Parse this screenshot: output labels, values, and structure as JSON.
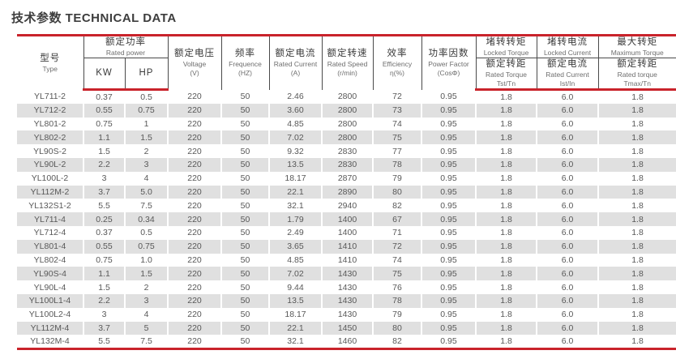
{
  "title": "技术参数 TECHNICAL DATA",
  "colors": {
    "accent_red": "#c9232b",
    "stripe_gray": "#e0e0e0",
    "header_line": "#4a4a4a",
    "title_text": "#3d3d3d",
    "body_text": "#585858"
  },
  "table": {
    "header": {
      "type": {
        "zh": "型号",
        "en": "Type"
      },
      "rated_power": {
        "zh": "额定功率",
        "en": "Rated power",
        "sub_kw": "KW",
        "sub_hp": "HP"
      },
      "voltage": {
        "zh": "额定电压",
        "en": "Voltage",
        "unit": "(V)"
      },
      "frequency": {
        "zh": "频率",
        "en": "Frequence",
        "unit": "(HZ)"
      },
      "rated_current": {
        "zh": "额定电流",
        "en": "Rated Current",
        "unit": "(A)"
      },
      "rated_speed": {
        "zh": "额定转速",
        "en": "Rated Speed",
        "unit": "(r/min)"
      },
      "efficiency": {
        "zh": "效率",
        "en": "Efficiency",
        "unit": "η(%)"
      },
      "power_factor": {
        "zh": "功率因数",
        "en": "Power Factor",
        "unit": "(CosΦ)"
      },
      "locked_torque": {
        "zh": "堵转转矩",
        "en": "Locked Torque",
        "sub_zh": "额定转距",
        "sub_en": "Rated Torque",
        "sub_unit": "Tst/Tn"
      },
      "locked_current": {
        "zh": "堵转电流",
        "en": "Locked Current",
        "sub_zh": "额定电流",
        "sub_en": "Rated Current",
        "sub_unit": "Ist/In"
      },
      "maximum_torque": {
        "zh": "最大转矩",
        "en": "Maximum Torque",
        "sub_zh": "额定转距",
        "sub_en": "Rated torque",
        "sub_unit": "Tmax/Tn"
      }
    },
    "rows": [
      [
        "YL711-2",
        "0.37",
        "0.5",
        "220",
        "50",
        "2.46",
        "2800",
        "72",
        "0.95",
        "1.8",
        "6.0",
        "1.8"
      ],
      [
        "YL712-2",
        "0.55",
        "0.75",
        "220",
        "50",
        "3.60",
        "2800",
        "73",
        "0.95",
        "1.8",
        "6.0",
        "1.8"
      ],
      [
        "YL801-2",
        "0.75",
        "1",
        "220",
        "50",
        "4.85",
        "2800",
        "74",
        "0.95",
        "1.8",
        "6.0",
        "1.8"
      ],
      [
        "YL802-2",
        "1.1",
        "1.5",
        "220",
        "50",
        "7.02",
        "2800",
        "75",
        "0.95",
        "1.8",
        "6.0",
        "1.8"
      ],
      [
        "YL90S-2",
        "1.5",
        "2",
        "220",
        "50",
        "9.32",
        "2830",
        "77",
        "0.95",
        "1.8",
        "6.0",
        "1.8"
      ],
      [
        "YL90L-2",
        "2.2",
        "3",
        "220",
        "50",
        "13.5",
        "2830",
        "78",
        "0.95",
        "1.8",
        "6.0",
        "1.8"
      ],
      [
        "YL100L-2",
        "3",
        "4",
        "220",
        "50",
        "18.17",
        "2870",
        "79",
        "0.95",
        "1.8",
        "6.0",
        "1.8"
      ],
      [
        "YL112M-2",
        "3.7",
        "5.0",
        "220",
        "50",
        "22.1",
        "2890",
        "80",
        "0.95",
        "1.8",
        "6.0",
        "1.8"
      ],
      [
        "YL132S1-2",
        "5.5",
        "7.5",
        "220",
        "50",
        "32.1",
        "2940",
        "82",
        "0.95",
        "1.8",
        "6.0",
        "1.8"
      ],
      [
        "YL711-4",
        "0.25",
        "0.34",
        "220",
        "50",
        "1.79",
        "1400",
        "67",
        "0.95",
        "1.8",
        "6.0",
        "1.8"
      ],
      [
        "YL712-4",
        "0.37",
        "0.5",
        "220",
        "50",
        "2.49",
        "1400",
        "71",
        "0.95",
        "1.8",
        "6.0",
        "1.8"
      ],
      [
        "YL801-4",
        "0.55",
        "0.75",
        "220",
        "50",
        "3.65",
        "1410",
        "72",
        "0.95",
        "1.8",
        "6.0",
        "1.8"
      ],
      [
        "YL802-4",
        "0.75",
        "1.0",
        "220",
        "50",
        "4.85",
        "1410",
        "74",
        "0.95",
        "1.8",
        "6.0",
        "1.8"
      ],
      [
        "YL90S-4",
        "1.1",
        "1.5",
        "220",
        "50",
        "7.02",
        "1430",
        "75",
        "0.95",
        "1.8",
        "6.0",
        "1.8"
      ],
      [
        "YL90L-4",
        "1.5",
        "2",
        "220",
        "50",
        "9.44",
        "1430",
        "76",
        "0.95",
        "1.8",
        "6.0",
        "1.8"
      ],
      [
        "YL100L1-4",
        "2.2",
        "3",
        "220",
        "50",
        "13.5",
        "1430",
        "78",
        "0.95",
        "1.8",
        "6.0",
        "1.8"
      ],
      [
        "YL100L2-4",
        "3",
        "4",
        "220",
        "50",
        "18.17",
        "1430",
        "79",
        "0.95",
        "1.8",
        "6.0",
        "1.8"
      ],
      [
        "YL112M-4",
        "3.7",
        "5",
        "220",
        "50",
        "22.1",
        "1450",
        "80",
        "0.95",
        "1.8",
        "6.0",
        "1.8"
      ],
      [
        "YL132M-4",
        "5.5",
        "7.5",
        "220",
        "50",
        "32.1",
        "1460",
        "82",
        "0.95",
        "1.8",
        "6.0",
        "1.8"
      ]
    ]
  }
}
